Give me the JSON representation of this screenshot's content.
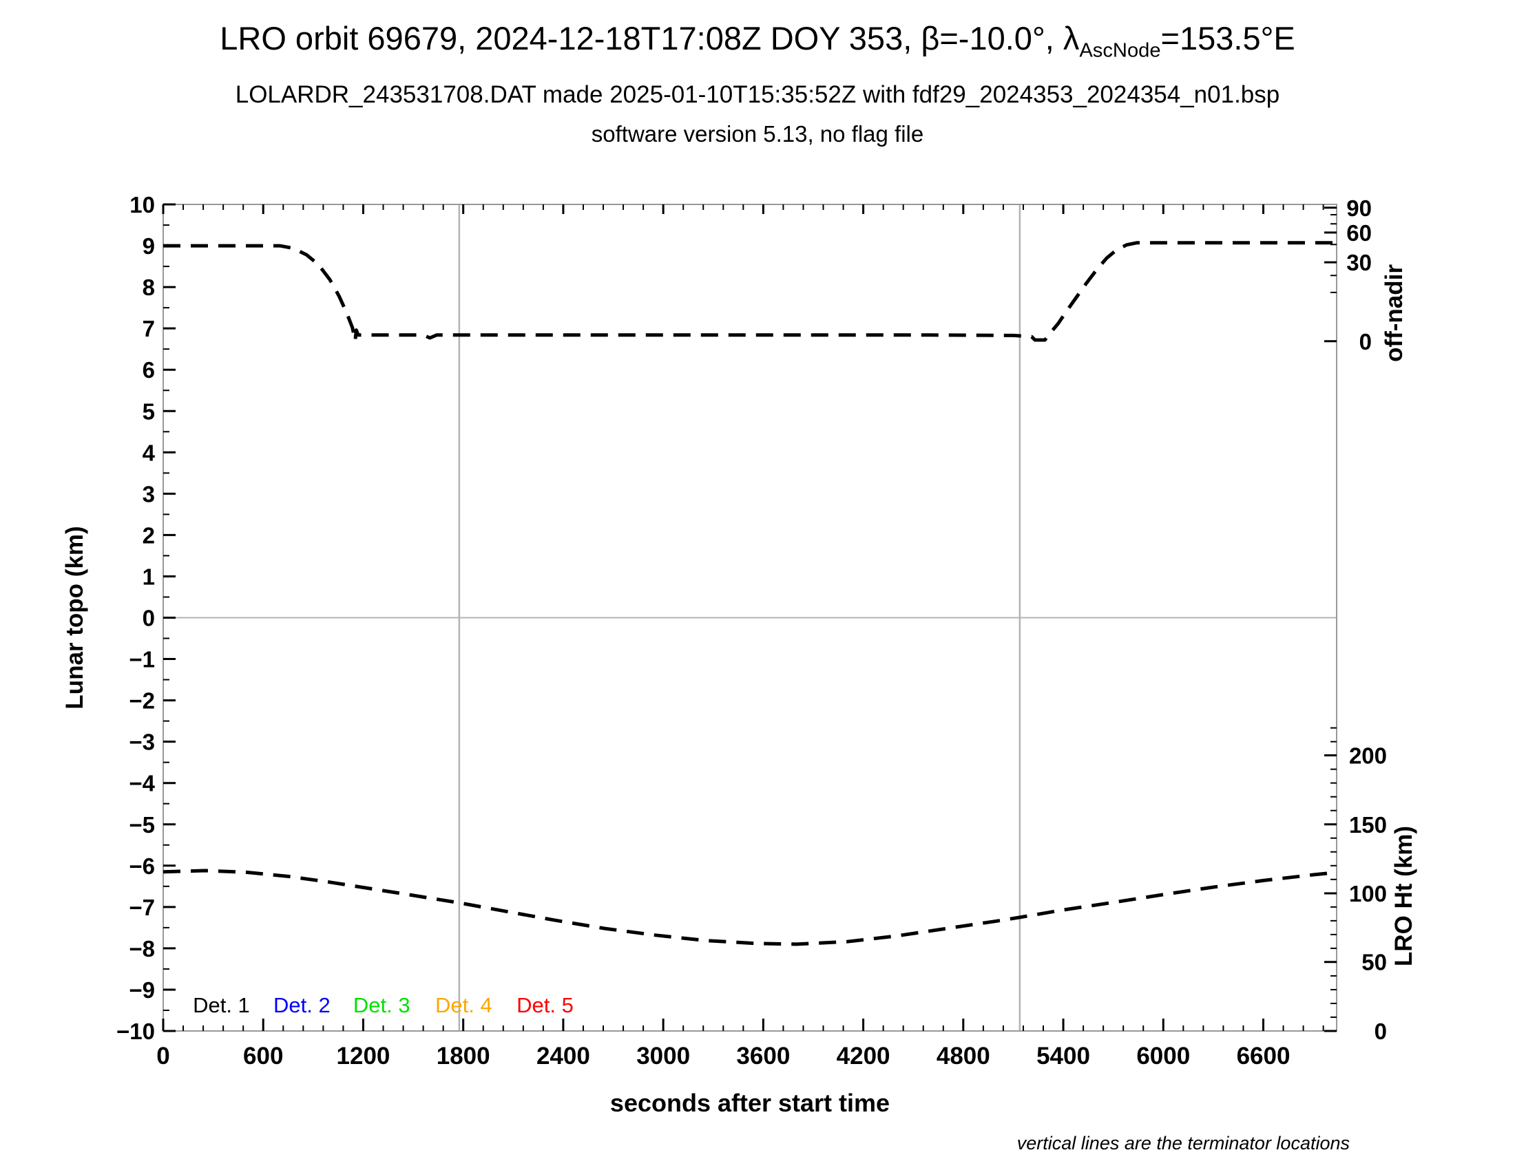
{
  "header": {
    "title_prefix": "LRO orbit 69679, 2024-12-18T17:08Z DOY 353, β=-10.0°, λ",
    "title_sub": "AscNode",
    "title_suffix": "=153.5°E",
    "subtitle": "LOLARDR_243531708.DAT made 2025-01-10T15:35:52Z with fdf29_2024353_2024354_n01.bsp",
    "subsubtitle": "software version 5.13, no flag file"
  },
  "footnote": "vertical lines are the terminator locations",
  "colors": {
    "frame": "#999999",
    "grid_gray": "#b3b3b3",
    "curve": "#000000",
    "det1": "#000000",
    "det2": "#0000ff",
    "det3": "#00e000",
    "det4": "#ffa500",
    "det5": "#ff0000"
  },
  "chart_data": {
    "type": "line",
    "title": "LRO orbit 69679, 2024-12-18T17:08Z DOY 353, β=-10.0°, λAscNode=153.5°E",
    "xlabel": "seconds after start time",
    "ylabel": "Lunar topo (km)",
    "y2label_top": "off-nadir",
    "y2label_bottom": "LRO Ht (km)",
    "xlim": [
      0,
      7040
    ],
    "ylim": [
      -10,
      10
    ],
    "x_major_ticks": [
      0,
      600,
      1200,
      1800,
      2400,
      3000,
      3600,
      4200,
      4800,
      5400,
      6000,
      6600
    ],
    "x_minor_step": 120,
    "y_major_step": 1,
    "y_minor_step": 0.5,
    "grid": {
      "horizontal_gray_line_at_topo": 0,
      "terminator_vertical_lines_t": [
        1776,
        5139
      ]
    },
    "right_axis_offnadir": {
      "label": "off-nadir",
      "major_ticks": [
        {
          "label": "90",
          "topo_pos": 9.92
        },
        {
          "label": "60",
          "topo_pos": 9.32
        },
        {
          "label": "30",
          "topo_pos": 8.6
        },
        {
          "label": "0",
          "topo_pos": 6.69
        }
      ],
      "minor_tick_topo_pos": [
        9.75,
        9.53,
        9.03,
        8.28,
        7.87
      ]
    },
    "right_axis_height": {
      "label": "LRO Ht (km)",
      "major_ticks": [
        {
          "label": "200",
          "topo_pos": -3.33
        },
        {
          "label": "150",
          "topo_pos": -5.0
        },
        {
          "label": "100",
          "topo_pos": -6.67
        },
        {
          "label": "50",
          "topo_pos": -8.33
        },
        {
          "label": "0",
          "topo_pos": -10.0
        }
      ],
      "minor_ticks_km": [
        10,
        20,
        30,
        40,
        60,
        70,
        80,
        90,
        110,
        120,
        130,
        140,
        160,
        170,
        180,
        190,
        210,
        220
      ],
      "km_per_topo_unit": 30
    },
    "series": [
      {
        "name": "spacecraft off-nadir angle",
        "axis": "right-top-offnadir",
        "line_style": "dashed",
        "color": "#000000",
        "points_t_topo": [
          [
            0,
            9.0
          ],
          [
            350,
            9.0
          ],
          [
            700,
            9.0
          ],
          [
            780,
            8.94
          ],
          [
            860,
            8.78
          ],
          [
            930,
            8.55
          ],
          [
            1000,
            8.18
          ],
          [
            1055,
            7.78
          ],
          [
            1100,
            7.38
          ],
          [
            1135,
            7.02
          ],
          [
            1152,
            6.7
          ],
          [
            1158,
            6.96
          ],
          [
            1170,
            6.84
          ],
          [
            1400,
            6.84
          ],
          [
            1560,
            6.84
          ],
          [
            1600,
            6.77
          ],
          [
            1640,
            6.84
          ],
          [
            2200,
            6.84
          ],
          [
            2800,
            6.84
          ],
          [
            3400,
            6.84
          ],
          [
            4000,
            6.84
          ],
          [
            4600,
            6.84
          ],
          [
            5100,
            6.83
          ],
          [
            5210,
            6.8
          ],
          [
            5230,
            6.72
          ],
          [
            5290,
            6.72
          ],
          [
            5320,
            6.88
          ],
          [
            5370,
            7.12
          ],
          [
            5420,
            7.42
          ],
          [
            5480,
            7.76
          ],
          [
            5540,
            8.1
          ],
          [
            5600,
            8.42
          ],
          [
            5660,
            8.7
          ],
          [
            5720,
            8.9
          ],
          [
            5780,
            9.02
          ],
          [
            5840,
            9.07
          ],
          [
            6200,
            9.07
          ],
          [
            6600,
            9.07
          ],
          [
            7020,
            9.07
          ]
        ],
        "reading_notes": "flat near 0° off-nadir between the terminators, slews to ~45° at orbit start and end"
      },
      {
        "name": "LRO height above surface",
        "axis": "right-bottom-height",
        "line_style": "dashed",
        "color": "#000000",
        "points_t_topo": [
          [
            0,
            -6.15
          ],
          [
            250,
            -6.12
          ],
          [
            500,
            -6.16
          ],
          [
            750,
            -6.26
          ],
          [
            1000,
            -6.4
          ],
          [
            1250,
            -6.56
          ],
          [
            1500,
            -6.72
          ],
          [
            1776,
            -6.9
          ],
          [
            2050,
            -7.1
          ],
          [
            2350,
            -7.32
          ],
          [
            2650,
            -7.52
          ],
          [
            2950,
            -7.68
          ],
          [
            3250,
            -7.81
          ],
          [
            3550,
            -7.88
          ],
          [
            3800,
            -7.9
          ],
          [
            4100,
            -7.84
          ],
          [
            4400,
            -7.7
          ],
          [
            4700,
            -7.52
          ],
          [
            5000,
            -7.34
          ],
          [
            5139,
            -7.25
          ],
          [
            5400,
            -7.07
          ],
          [
            5700,
            -6.89
          ],
          [
            6000,
            -6.7
          ],
          [
            6300,
            -6.52
          ],
          [
            6600,
            -6.36
          ],
          [
            6900,
            -6.22
          ],
          [
            7020,
            -6.17
          ]
        ],
        "reading_notes": "height ≈115 km at start/end, minimum ≈63 km near t≈3700 s"
      }
    ],
    "legend": {
      "topo_y": -9.37,
      "items": [
        {
          "label": "Det. 1",
          "color": "#000000",
          "t_start": 178
        },
        {
          "label": "Det. 2",
          "color": "#0000ff",
          "t_start": 661
        },
        {
          "label": "Det. 3",
          "color": "#00e000",
          "t_start": 1140
        },
        {
          "label": "Det. 4",
          "color": "#ffa500",
          "t_start": 1632
        },
        {
          "label": "Det. 5",
          "color": "#ff0000",
          "t_start": 2120
        }
      ]
    },
    "legend_position": "inside bottom-left",
    "grid_on": false
  }
}
